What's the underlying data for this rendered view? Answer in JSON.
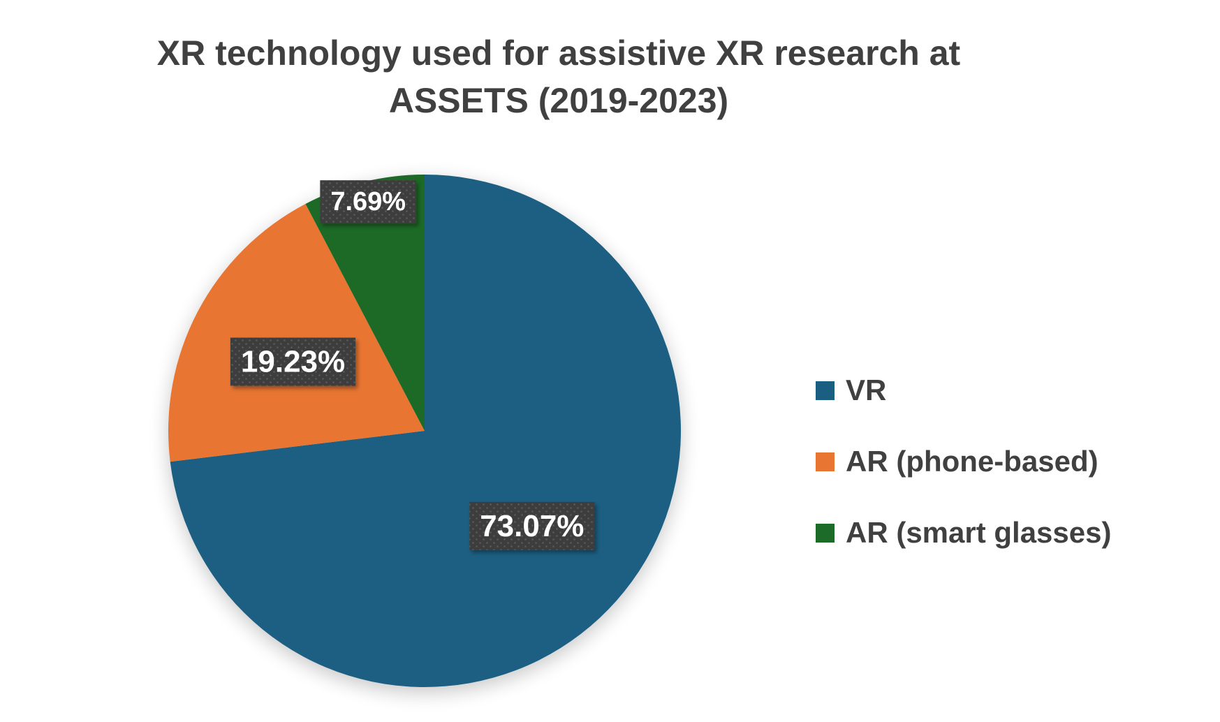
{
  "chart_data": {
    "type": "pie",
    "title": "XR technology used for assistive XR research at ASSETS (2019-2023)",
    "categories": [
      "VR",
      "AR (phone-based)",
      "AR (smart glasses)"
    ],
    "values": [
      73.07,
      19.23,
      7.69
    ],
    "data_labels": [
      "73.07%",
      "19.23%",
      "7.69%"
    ],
    "colors": [
      "#1a5f82",
      "#e87532",
      "#1d6b28"
    ],
    "legend_position": "right",
    "start_angle": "12 o'clock",
    "direction": "clockwise"
  }
}
